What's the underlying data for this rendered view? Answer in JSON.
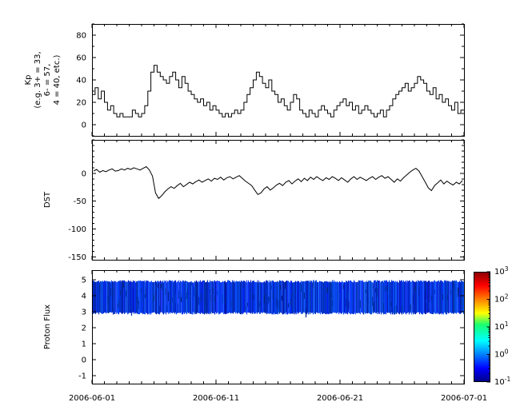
{
  "figure": {
    "background": "#ffffff",
    "axis_color": "#000000",
    "line_color": "#000000"
  },
  "x_axis": {
    "start": "2006-06-01",
    "end": "2006-07-01",
    "span_days": 30,
    "tick_labels": [
      "2006-06-01",
      "2006-06-11",
      "2006-06-21",
      "2006-07-01"
    ],
    "tick_positions_days": [
      0,
      10,
      20,
      30
    ],
    "minor_tick_interval_days": 1
  },
  "chart_data": [
    {
      "type": "line",
      "name": "kp",
      "style": "steps-post",
      "ylabel_lines": [
        "Kp",
        "(e.g. 3+ = 33,",
        "6- = 57,",
        "4 = 40, etc.)"
      ],
      "cadence_hours": 6,
      "ylim": [
        -10,
        90
      ],
      "yticks": [
        0,
        20,
        40,
        60,
        80
      ],
      "y_minor_interval": 10,
      "values": [
        27,
        33,
        23,
        30,
        20,
        13,
        17,
        10,
        7,
        10,
        7,
        7,
        7,
        13,
        10,
        7,
        10,
        17,
        30,
        47,
        53,
        47,
        43,
        40,
        37,
        43,
        47,
        40,
        33,
        43,
        37,
        30,
        27,
        23,
        20,
        23,
        17,
        20,
        13,
        17,
        13,
        10,
        7,
        10,
        7,
        10,
        13,
        10,
        13,
        20,
        27,
        33,
        40,
        47,
        43,
        37,
        33,
        40,
        30,
        27,
        20,
        23,
        17,
        13,
        20,
        27,
        23,
        13,
        10,
        7,
        13,
        10,
        7,
        13,
        17,
        13,
        10,
        7,
        13,
        17,
        20,
        23,
        17,
        20,
        13,
        17,
        10,
        13,
        17,
        13,
        10,
        7,
        10,
        13,
        7,
        13,
        17,
        23,
        27,
        30,
        33,
        37,
        30,
        33,
        37,
        43,
        40,
        37,
        30,
        27,
        33,
        23,
        27,
        20,
        23,
        17,
        13,
        20,
        10,
        13
      ]
    },
    {
      "type": "line",
      "name": "dst",
      "style": "line",
      "ylabel": "DST",
      "cadence_hours": 6,
      "ylim": [
        -155,
        60
      ],
      "yticks": [
        0,
        -50,
        -100,
        -150
      ],
      "y_minor_interval": 10,
      "values": [
        4,
        7,
        2,
        5,
        3,
        6,
        8,
        4,
        5,
        8,
        6,
        9,
        7,
        10,
        8,
        6,
        9,
        12,
        6,
        -5,
        -35,
        -45,
        -40,
        -33,
        -28,
        -24,
        -27,
        -22,
        -18,
        -24,
        -20,
        -16,
        -19,
        -15,
        -12,
        -16,
        -13,
        -10,
        -14,
        -9,
        -11,
        -7,
        -12,
        -8,
        -6,
        -10,
        -7,
        -4,
        -9,
        -14,
        -18,
        -22,
        -30,
        -38,
        -35,
        -28,
        -24,
        -30,
        -26,
        -21,
        -18,
        -22,
        -16,
        -13,
        -19,
        -14,
        -10,
        -15,
        -9,
        -13,
        -7,
        -11,
        -6,
        -10,
        -13,
        -8,
        -11,
        -6,
        -9,
        -13,
        -8,
        -12,
        -16,
        -10,
        -6,
        -11,
        -7,
        -10,
        -13,
        -9,
        -6,
        -11,
        -7,
        -4,
        -9,
        -6,
        -11,
        -16,
        -10,
        -14,
        -8,
        -3,
        2,
        6,
        9,
        4,
        -6,
        -16,
        -26,
        -31,
        -22,
        -17,
        -12,
        -19,
        -14,
        -18,
        -21,
        -16,
        -19,
        -13
      ]
    },
    {
      "type": "heatmap",
      "name": "proton_flux",
      "ylabel": "Proton Flux",
      "ylim": [
        -1.5,
        5.6
      ],
      "yticks": [
        -1,
        0,
        1,
        2,
        3,
        4,
        5
      ],
      "band": {
        "y_min": 2.9,
        "y_max": 4.9,
        "flux_log10_range": [
          -1.2,
          -0.3
        ]
      },
      "colorbar": {
        "scale": "log",
        "range": [
          0.1,
          1000
        ],
        "tick_exponents": [
          -1,
          0,
          1,
          2,
          3
        ],
        "colormap": "jet"
      }
    }
  ]
}
